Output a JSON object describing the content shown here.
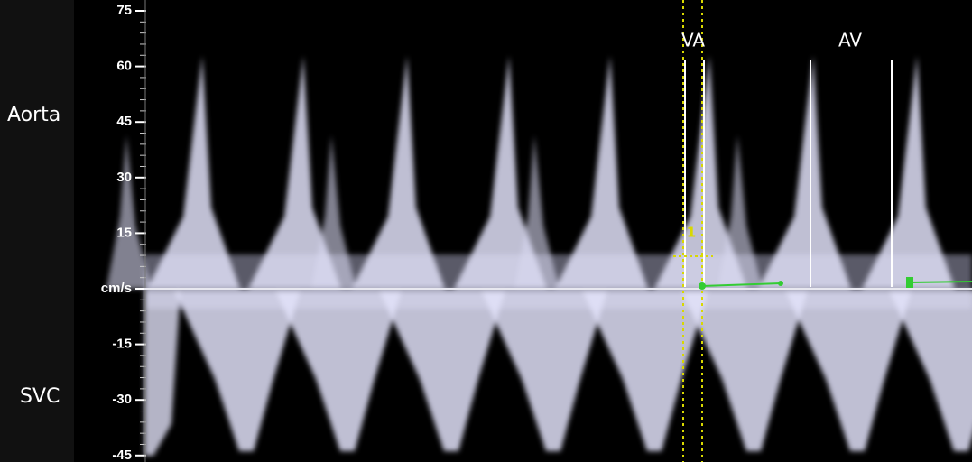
{
  "axis": {
    "ticks": [
      75,
      60,
      45,
      30,
      15,
      {
        "value": 0,
        "label": "cm/s"
      },
      -15,
      -30,
      -45
    ]
  },
  "labels": {
    "top_vessel": "Aorta",
    "bottom_vessel": "SVC",
    "marker_va": "VA",
    "marker_av": "AV",
    "cursor_number": "1"
  }
}
